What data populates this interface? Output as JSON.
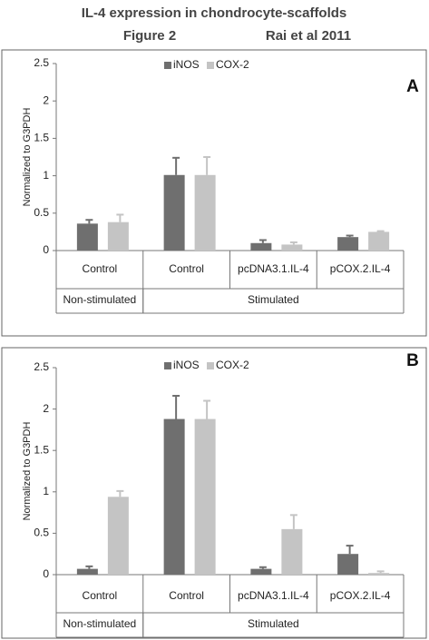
{
  "header": {
    "title": "IL-4 expression in chondrocyte-scaffolds",
    "figure": "Figure 2",
    "citation": "Rai et al 2011"
  },
  "chart_data": [
    {
      "type": "bar",
      "panel": "A",
      "ylabel": "Normalized to G3PDH",
      "categories": [
        "Control",
        "Control",
        "pcDNA3.1.IL-4",
        "pCOX.2.IL-4"
      ],
      "category_groups": [
        "Non-stimulated",
        "Stimulated",
        "Stimulated",
        "Stimulated"
      ],
      "series": [
        {
          "name": "iNOS",
          "color": "#6f6f6f",
          "values": [
            0.36,
            1.01,
            0.1,
            0.18
          ],
          "errors": [
            0.05,
            0.23,
            0.04,
            0.02
          ]
        },
        {
          "name": "COX-2",
          "color": "#c4c4c4",
          "values": [
            0.38,
            1.01,
            0.08,
            0.25
          ],
          "errors": [
            0.1,
            0.24,
            0.03,
            0.01
          ]
        }
      ],
      "ylim": [
        0,
        2.5
      ],
      "yticks": [
        0,
        0.5,
        1,
        1.5,
        2,
        2.5
      ],
      "legend": "top"
    },
    {
      "type": "bar",
      "panel": "B",
      "ylabel": "Normalized to G3PDH",
      "categories": [
        "Control",
        "Control",
        "pcDNA3.1.IL-4",
        "pCOX.2.IL-4"
      ],
      "category_groups": [
        "Non-stimulated",
        "Stimulated",
        "Stimulated",
        "Stimulated"
      ],
      "series": [
        {
          "name": "iNOS",
          "color": "#6f6f6f",
          "values": [
            0.07,
            1.88,
            0.07,
            0.25
          ],
          "errors": [
            0.03,
            0.28,
            0.02,
            0.1
          ]
        },
        {
          "name": "COX-2",
          "color": "#c4c4c4",
          "values": [
            0.94,
            1.88,
            0.55,
            0.02
          ],
          "errors": [
            0.07,
            0.22,
            0.17,
            0.02
          ]
        }
      ],
      "ylim": [
        0,
        2.5
      ],
      "yticks": [
        0,
        0.5,
        1,
        1.5,
        2,
        2.5
      ],
      "legend": "top"
    }
  ]
}
